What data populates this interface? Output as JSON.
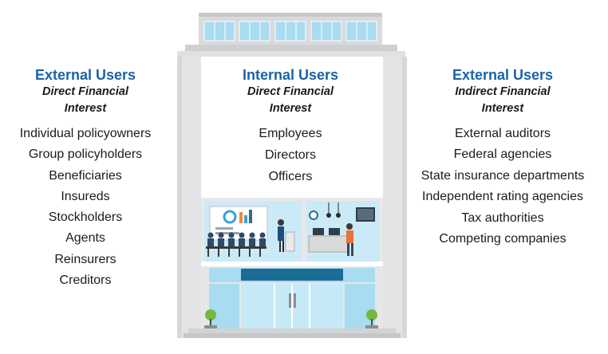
{
  "columns": [
    {
      "title": "External Users",
      "subtitle_line1": "Direct Financial",
      "subtitle_line2": "Interest",
      "items": [
        "Individual policyowners",
        "Group policyholders",
        "Beneficiaries",
        "Insureds",
        "Stockholders",
        "Agents",
        "Reinsurers",
        "Creditors"
      ]
    },
    {
      "title": "Internal Users",
      "subtitle_line1": "Direct Financial",
      "subtitle_line2": "Interest",
      "items": [
        "Employees",
        "Directors",
        "Officers"
      ]
    },
    {
      "title": "External Users",
      "subtitle_line1": "Indirect Financial",
      "subtitle_line2": "Interest",
      "items": [
        "External auditors",
        "Federal agencies",
        "State insurance departments",
        "Independent rating agencies",
        "Tax authorities",
        "Competing companies"
      ]
    }
  ],
  "colors": {
    "title_blue": "#1a63a8",
    "building_gray": "#e3e4e5",
    "window_blue": "#9dd4ee",
    "sign_blue": "#1c6d96"
  },
  "icons": [
    "building-illustration",
    "meeting-room-illustration",
    "reception-illustration",
    "tree-icon"
  ]
}
